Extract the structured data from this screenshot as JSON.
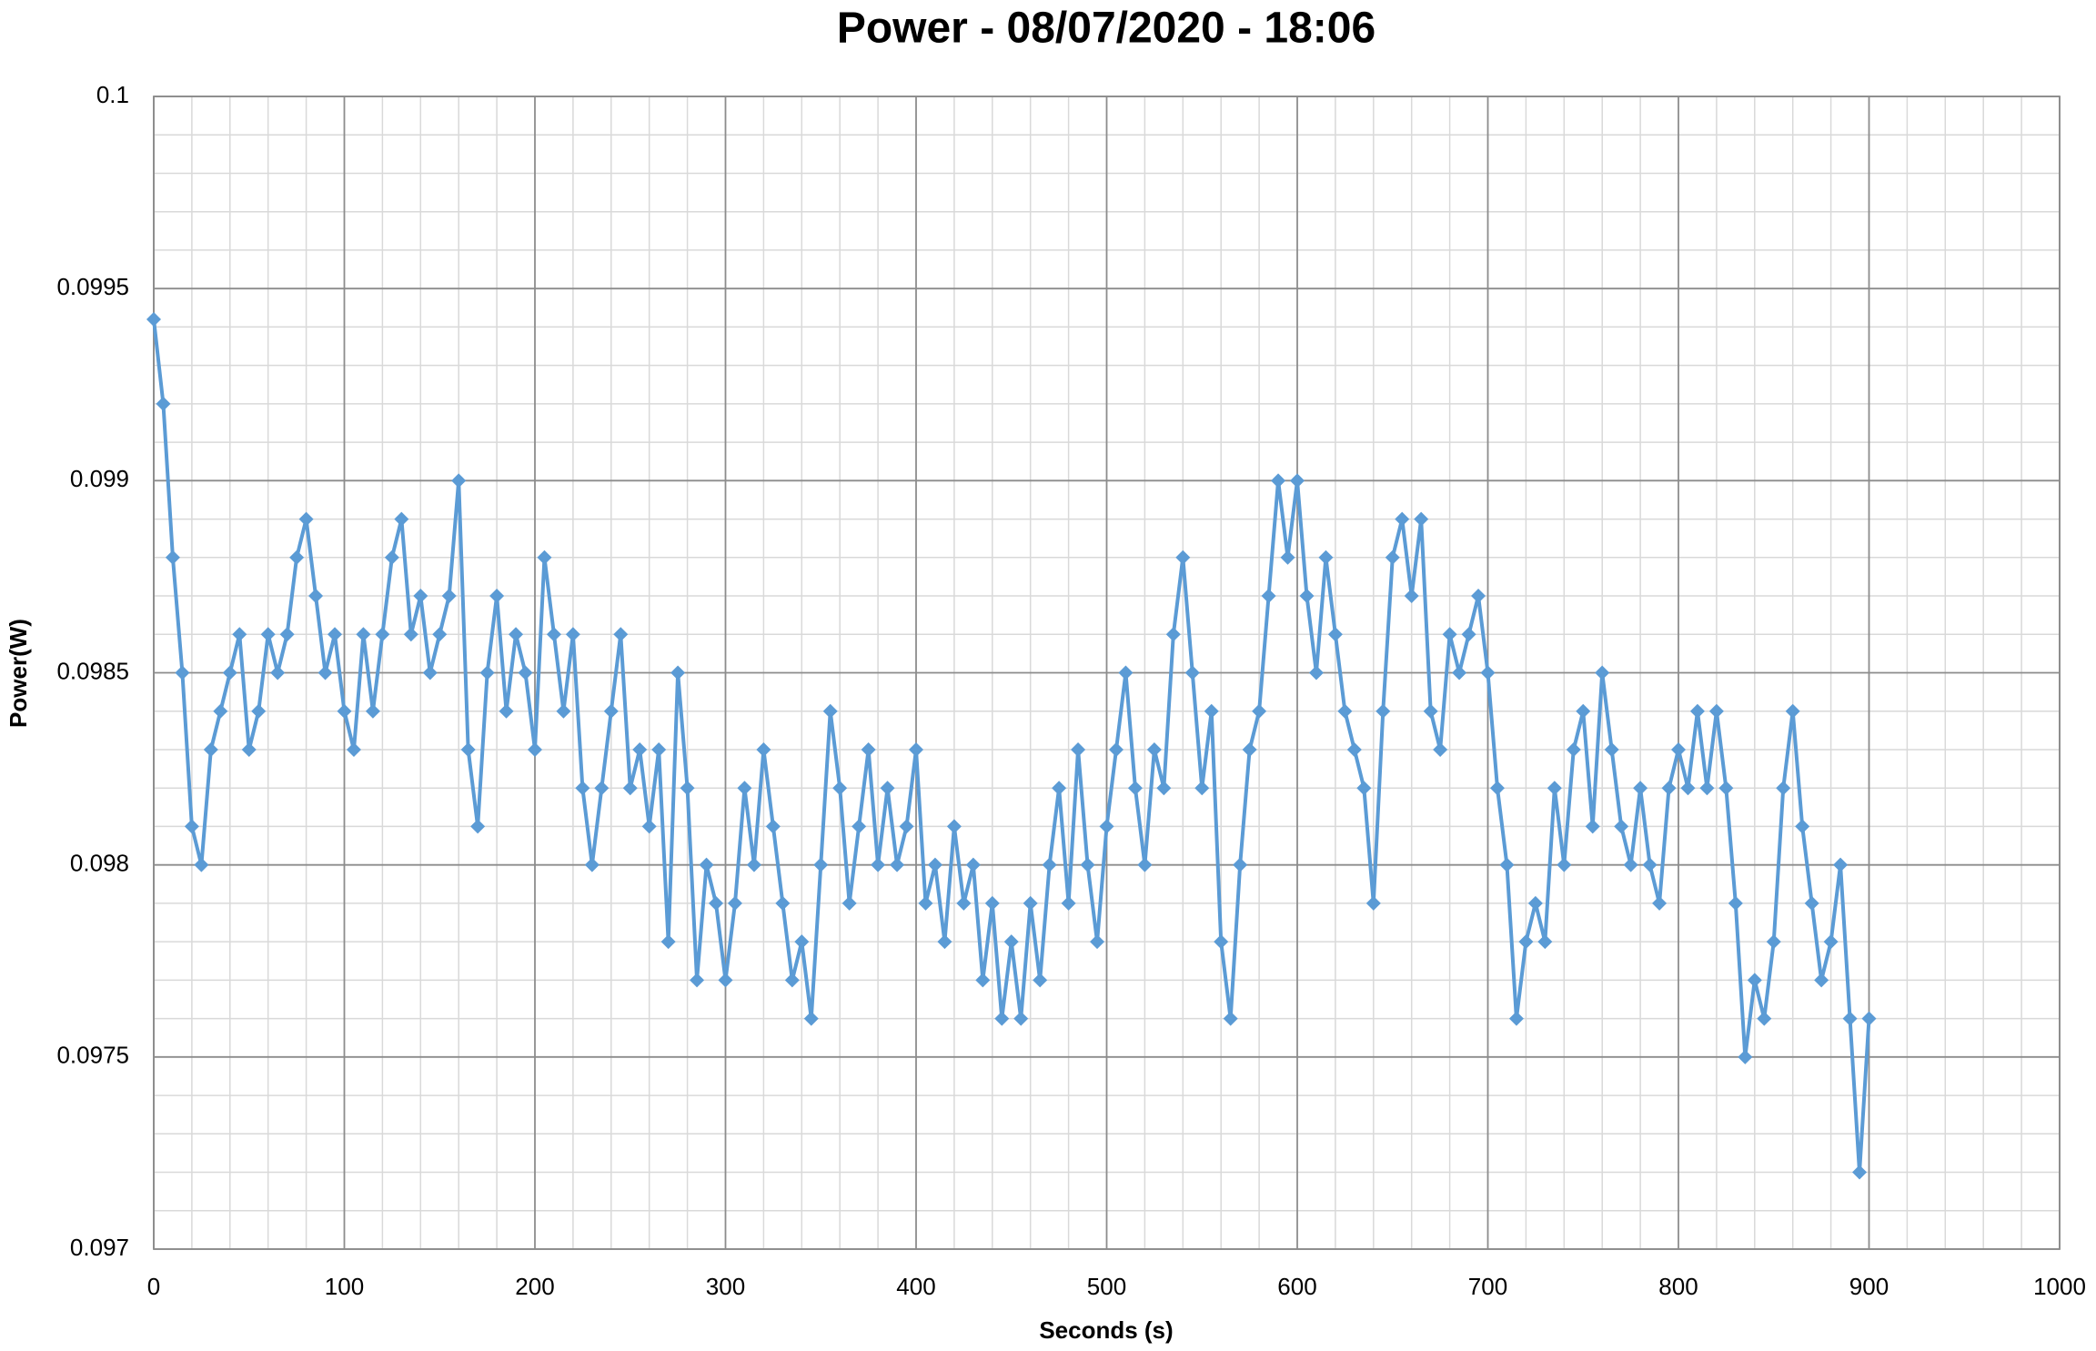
{
  "chart_data": {
    "type": "line",
    "title": "Power - 08/07/2020 - 18:06",
    "x_label": "Seconds (s)",
    "y_label": "Power(W)",
    "color": "#5b9bd5",
    "marker": "diamond",
    "grid": true,
    "minor_grid_divisions": 5,
    "xlim": [
      0,
      1000
    ],
    "xticks": [
      0,
      100,
      200,
      300,
      400,
      500,
      600,
      700,
      800,
      900,
      1000
    ],
    "ylim": [
      0.097,
      0.1
    ],
    "yticks": [
      0.097,
      0.0975,
      0.098,
      0.0985,
      0.099,
      0.0995,
      0.1
    ],
    "x": [
      0,
      5,
      10,
      15,
      20,
      25,
      30,
      35,
      40,
      45,
      50,
      55,
      60,
      65,
      70,
      75,
      80,
      85,
      90,
      95,
      100,
      105,
      110,
      115,
      120,
      125,
      130,
      135,
      140,
      145,
      150,
      155,
      160,
      165,
      170,
      175,
      180,
      185,
      190,
      195,
      200,
      205,
      210,
      215,
      220,
      225,
      230,
      235,
      240,
      245,
      250,
      255,
      260,
      265,
      270,
      275,
      280,
      285,
      290,
      295,
      300,
      305,
      310,
      315,
      320,
      325,
      330,
      335,
      340,
      345,
      350,
      355,
      360,
      365,
      370,
      375,
      380,
      385,
      390,
      395,
      400,
      405,
      410,
      415,
      420,
      425,
      430,
      435,
      440,
      445,
      450,
      455,
      460,
      465,
      470,
      475,
      480,
      485,
      490,
      495,
      500,
      505,
      510,
      515,
      520,
      525,
      530,
      535,
      540,
      545,
      550,
      555,
      560,
      565,
      570,
      575,
      580,
      585,
      590,
      595,
      600,
      605,
      610,
      615,
      620,
      625,
      630,
      635,
      640,
      645,
      650,
      655,
      660,
      665,
      670,
      675,
      680,
      685,
      690,
      695,
      700,
      705,
      710,
      715,
      720,
      725,
      730,
      735,
      740,
      745,
      750,
      755,
      760,
      765,
      770,
      775,
      780,
      785,
      790,
      795,
      800,
      805,
      810,
      815,
      820,
      825,
      830,
      835,
      840,
      845,
      850,
      855,
      860,
      865,
      870,
      875,
      880,
      885,
      890,
      895,
      900
    ],
    "values": [
      0.09942,
      0.0992,
      0.0988,
      0.0985,
      0.0981,
      0.098,
      0.0983,
      0.0984,
      0.0985,
      0.0986,
      0.0983,
      0.0984,
      0.0986,
      0.0985,
      0.0986,
      0.0988,
      0.0989,
      0.0987,
      0.0985,
      0.0986,
      0.0984,
      0.0983,
      0.0986,
      0.0984,
      0.0986,
      0.0988,
      0.0989,
      0.0986,
      0.0987,
      0.0985,
      0.0986,
      0.0987,
      0.099,
      0.0983,
      0.0981,
      0.0985,
      0.0987,
      0.0984,
      0.0986,
      0.0985,
      0.0983,
      0.0988,
      0.0986,
      0.0984,
      0.0986,
      0.0982,
      0.098,
      0.0982,
      0.0984,
      0.0986,
      0.0982,
      0.0983,
      0.0981,
      0.0983,
      0.0978,
      0.0985,
      0.0982,
      0.0977,
      0.098,
      0.0979,
      0.0977,
      0.0979,
      0.0982,
      0.098,
      0.0983,
      0.0981,
      0.0979,
      0.0977,
      0.0978,
      0.0976,
      0.098,
      0.0984,
      0.0982,
      0.0979,
      0.0981,
      0.0983,
      0.098,
      0.0982,
      0.098,
      0.0981,
      0.0983,
      0.0979,
      0.098,
      0.0978,
      0.0981,
      0.0979,
      0.098,
      0.0977,
      0.0979,
      0.0976,
      0.0978,
      0.0976,
      0.0979,
      0.0977,
      0.098,
      0.0982,
      0.0979,
      0.0983,
      0.098,
      0.0978,
      0.0981,
      0.0983,
      0.0985,
      0.0982,
      0.098,
      0.0983,
      0.0982,
      0.0986,
      0.0988,
      0.0985,
      0.0982,
      0.0984,
      0.0978,
      0.0976,
      0.098,
      0.0983,
      0.0984,
      0.0987,
      0.099,
      0.0988,
      0.099,
      0.0987,
      0.0985,
      0.0988,
      0.0986,
      0.0984,
      0.0983,
      0.0982,
      0.0979,
      0.0984,
      0.0988,
      0.0989,
      0.0987,
      0.0989,
      0.0984,
      0.0983,
      0.0986,
      0.0985,
      0.0986,
      0.0987,
      0.0985,
      0.0982,
      0.098,
      0.0976,
      0.0978,
      0.0979,
      0.0978,
      0.0982,
      0.098,
      0.0983,
      0.0984,
      0.0981,
      0.0985,
      0.0983,
      0.0981,
      0.098,
      0.0982,
      0.098,
      0.0979,
      0.0982,
      0.0983,
      0.0982,
      0.0984,
      0.0982,
      0.0984,
      0.0982,
      0.0979,
      0.0975,
      0.0977,
      0.0976,
      0.0978,
      0.0982,
      0.0984,
      0.0981,
      0.0979,
      0.0977,
      0.0978,
      0.098,
      0.0976,
      0.0972,
      0.0976
    ]
  }
}
